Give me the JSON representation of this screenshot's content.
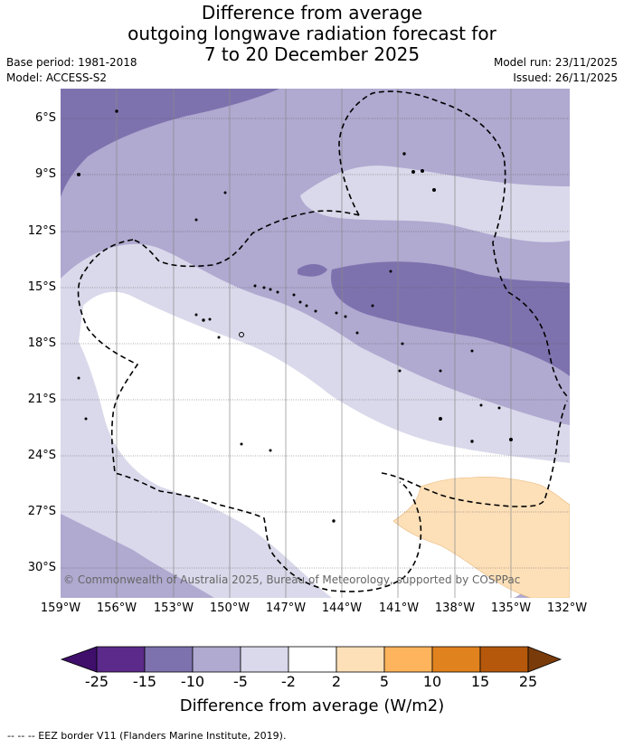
{
  "title": {
    "line1": "Difference from average",
    "line2": "outgoing longwave radiation forecast for",
    "line3": "7 to 20 December 2025"
  },
  "meta": {
    "base_period": "Base period: 1981-2018",
    "model": "Model: ACCESS-S2",
    "model_run": "Model run: 23/11/2025",
    "issued": "Issued: 26/11/2025"
  },
  "map": {
    "lat_labels": [
      "6°S",
      "9°S",
      "12°S",
      "15°S",
      "18°S",
      "21°S",
      "24°S",
      "27°S",
      "30°S"
    ],
    "lon_labels": [
      "159°W",
      "156°W",
      "153°W",
      "150°W",
      "147°W",
      "144°W",
      "141°W",
      "138°W",
      "135°W",
      "132°W"
    ],
    "copyright": "© Commonwealth of Australia 2025, Bureau of Meteorology, supported by COSPPac",
    "colors": {
      "lt_neg15": "#7e72ae",
      "neg15_neg10": "#b0a9d0",
      "neg10_neg5": "#b0a9d0",
      "neg5_neg2": "#d9d9eb",
      "neg2_2": "#ffffff",
      "pos2_5": "#fde0b8"
    }
  },
  "colorbar": {
    "ticks": [
      "-25",
      "-15",
      "-10",
      "-5",
      "-2",
      "2",
      "5",
      "10",
      "15",
      "25"
    ],
    "colors": [
      "#3f0f6b",
      "#5c2a8a",
      "#7e72ae",
      "#b0a9d0",
      "#d9d9eb",
      "#ffffff",
      "#fde0b8",
      "#fdb45c",
      "#e0821e",
      "#b5580c",
      "#7a3b0a"
    ],
    "title": "Difference from average (W/m2)"
  },
  "footer": "--  --  -- EEZ border V11 (Flanders Marine Institute, 2019)."
}
